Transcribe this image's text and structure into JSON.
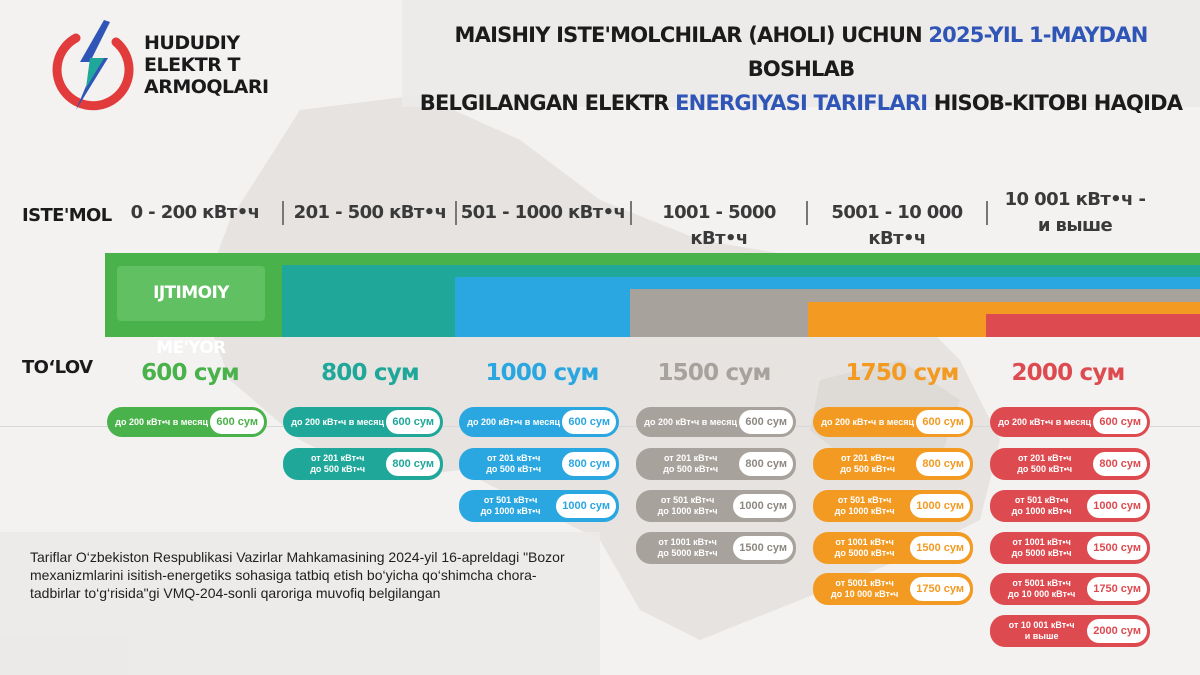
{
  "brand": {
    "line1": "HUDUDIY",
    "line2": "ELEKTR T",
    "line3": "ARMOQLARI"
  },
  "title": {
    "l1_a": "MAISHIY ISTE'MOLCHILAR (AHOLI) UCHUN ",
    "l1_hl": "2025-YIL 1-MAYDAN",
    "l1_b": " BOSHLAB",
    "l2_a": "BELGILANGAN ELEKTR ",
    "l2_hl": "ENERGIYASI TARIFLARI",
    "l2_b": " HISOB-KITOBI HAQIDA"
  },
  "labels": {
    "consumption": "ISTE'MOL",
    "payment": "TO‘LOV",
    "norm": "IJTIMOIY ME'YOR"
  },
  "tiers": [
    {
      "range": "0 - 200 кВт•ч",
      "price": "600 сум",
      "color": "#4ab24a"
    },
    {
      "range": "201 - 500 кВт•ч",
      "price": "800 сум",
      "color": "#1fa89a"
    },
    {
      "range": "501 - 1000 кВт•ч",
      "price": "1000 сум",
      "color": "#2aa7e0"
    },
    {
      "range": "1001 - 5000 кВт•ч",
      "price": "1500 сум",
      "color": "#a8a29c"
    },
    {
      "range": "5001 - 10 000 кВт•ч",
      "price": "1750 сум",
      "color": "#f39a22"
    },
    {
      "range_l1": "10 001 кВт•ч -",
      "range_l2": "и выше",
      "price": "2000 сум",
      "color": "#dd4b50"
    }
  ],
  "breakdown": {
    "r1": {
      "text": "до 200 кВт•ч в месяц",
      "value": "600 сум"
    },
    "r2": {
      "text_l1": "от 201 кВт•ч",
      "text_l2": "до 500 кВт•ч",
      "value": "800 сум"
    },
    "r3": {
      "text_l1": "от 501 кВт•ч",
      "text_l2": "до 1000 кВт•ч",
      "value": "1000 сум"
    },
    "r4": {
      "text_l1": "от 1001 кВт•ч",
      "text_l2": "до 5000 кВт•ч",
      "value": "1500 сум"
    },
    "r5": {
      "text_l1": "от 5001 кВт•ч",
      "text_l2": "до 10 000 кВт•ч",
      "value": "1750 сум"
    },
    "r6": {
      "text_l1": "от 10 001 кВт•ч",
      "text_l2": "и выше",
      "value": "2000 сум"
    }
  },
  "note": "Tariflar O‘zbekiston Respublikasi Vazirlar Mahkamasining 2024-yil 16-apreldagi \"Bozor mexanizmlarini isitish-energetiks sohasiga tatbiq etish bo‘yicha qo‘shimcha chora-tadbirlar to‘g‘risida\"gi VMQ-204-sonli qaroriga muvofiq belgilangan"
}
